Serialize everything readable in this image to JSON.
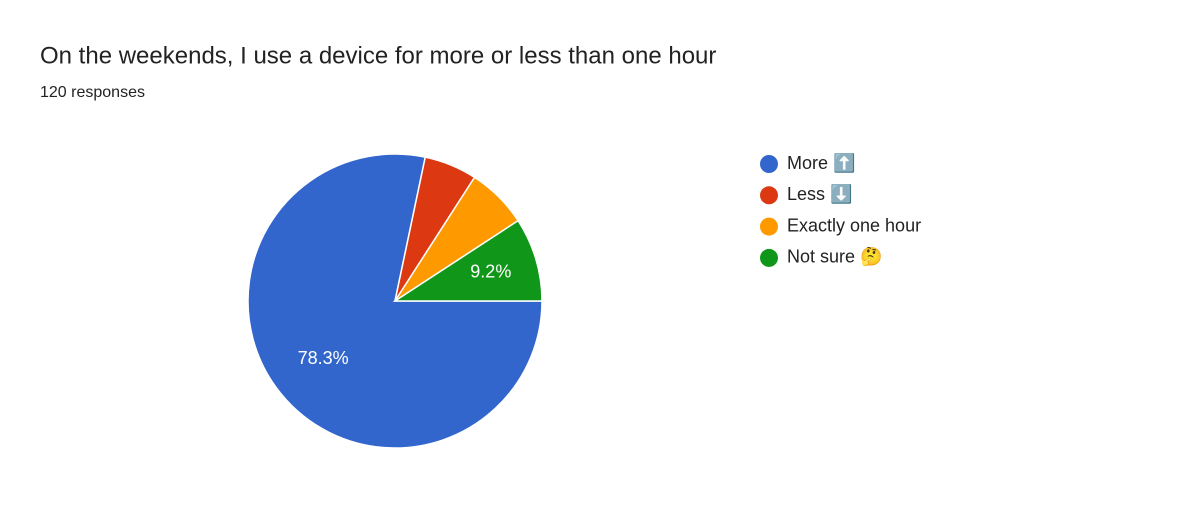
{
  "chart_data": {
    "type": "pie",
    "title": "On the weekends, I use a device for more or less than one hour",
    "subtitle": "120 responses",
    "categories": [
      "More ⬆️",
      "Less ⬇️",
      "Exactly one hour",
      "Not sure 🤔"
    ],
    "values": [
      78.3,
      5.8,
      6.7,
      9.2
    ],
    "value_labels": [
      "78.3%",
      null,
      null,
      "9.2%"
    ],
    "colors": [
      "#3366cc",
      "#dc3912",
      "#ff9900",
      "#109618"
    ],
    "legend": "right"
  }
}
